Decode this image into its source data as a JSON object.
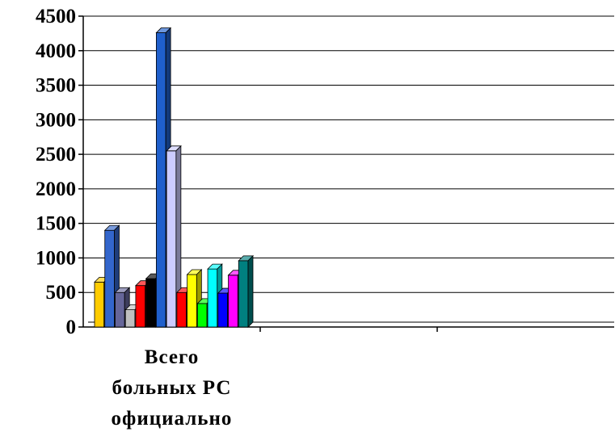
{
  "chart_data": {
    "type": "bar",
    "style": "3d-clustered",
    "categories": [
      "Всего больных РС официально",
      "",
      ""
    ],
    "category_label_lines": [
      "Всего",
      "больных РС",
      "официально"
    ],
    "series": [
      {
        "color": "#FFCC00",
        "values": [
          650,
          null,
          null
        ]
      },
      {
        "color": "#3366CC",
        "values": [
          1400,
          null,
          null
        ]
      },
      {
        "color": "#666699",
        "values": [
          500,
          null,
          null
        ]
      },
      {
        "color": "#C0C0C0",
        "values": [
          250,
          null,
          null
        ]
      },
      {
        "color": "#FF0000",
        "values": [
          600,
          null,
          null
        ]
      },
      {
        "color": "#000000",
        "values": [
          700,
          null,
          null
        ]
      },
      {
        "color": "#1F5FCC",
        "values": [
          4260,
          null,
          null
        ]
      },
      {
        "color": "#CCCCFF",
        "values": [
          2550,
          null,
          null
        ]
      },
      {
        "color": "#FF0000",
        "values": [
          500,
          null,
          null
        ]
      },
      {
        "color": "#FFFF00",
        "values": [
          760,
          null,
          null
        ]
      },
      {
        "color": "#00FF00",
        "values": [
          340,
          null,
          null
        ]
      },
      {
        "color": "#00FFFF",
        "values": [
          840,
          null,
          null
        ]
      },
      {
        "color": "#0000FF",
        "values": [
          490,
          null,
          null
        ]
      },
      {
        "color": "#FF00FF",
        "values": [
          750,
          null,
          null
        ]
      },
      {
        "color": "#008080",
        "values": [
          960,
          null,
          null
        ]
      }
    ],
    "ylim": [
      0,
      4500
    ],
    "yticks": [
      "0",
      "500",
      "1000",
      "1500",
      "2000",
      "2500",
      "3000",
      "3500",
      "4000",
      "4500"
    ],
    "grid": true,
    "legend": "none"
  }
}
